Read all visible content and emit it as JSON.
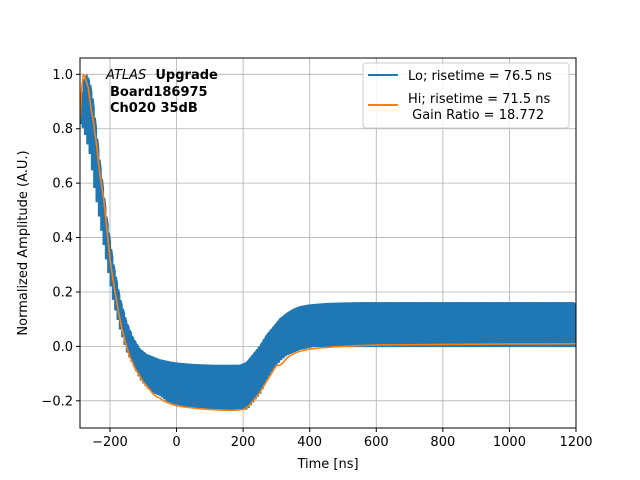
{
  "chart_data": {
    "type": "line",
    "title": "",
    "xlabel": "Time [ns]",
    "ylabel": "Normalized Amplitude (A.U.)",
    "xlim": [
      -290,
      1200
    ],
    "ylim": [
      -0.3,
      1.06
    ],
    "xticks": [
      -200,
      0,
      200,
      400,
      600,
      800,
      1000,
      1200
    ],
    "yticks": [
      -0.2,
      0.0,
      0.2,
      0.4,
      0.6,
      0.8,
      1.0
    ],
    "xtick_labels": [
      "−200",
      "0",
      "200",
      "400",
      "600",
      "800",
      "1000",
      "1200"
    ],
    "ytick_labels": [
      "−0.2",
      "0.0",
      "0.2",
      "0.4",
      "0.6",
      "0.8",
      "1.0"
    ],
    "grid": true,
    "legend_position": "top-right",
    "annotation": {
      "italic": "ATLAS",
      "bold": "Upgrade",
      "line2": "Board186975",
      "line3": "Ch020 35dB"
    },
    "series": [
      {
        "name": "Lo; risetime = 76.5 ns",
        "color": "#1f77b4",
        "style": "sampled-comb",
        "x": [
          -290,
          -280,
          -270,
          -260,
          -250,
          -230,
          -210,
          -190,
          -170,
          -150,
          -130,
          -110,
          -90,
          -70,
          -50,
          -30,
          -10,
          10,
          30,
          50,
          70,
          90,
          110,
          130,
          150,
          170,
          190,
          210,
          230,
          250,
          270,
          290,
          310,
          330,
          350,
          370,
          390,
          410,
          430,
          450,
          470,
          500,
          550,
          600,
          700,
          800,
          900,
          1000,
          1100,
          1200
        ],
        "y": [
          0.85,
          0.97,
          1.0,
          0.97,
          0.9,
          0.68,
          0.48,
          0.31,
          0.18,
          0.09,
          0.03,
          -0.01,
          -0.03,
          -0.04,
          -0.05,
          -0.055,
          -0.06,
          -0.063,
          -0.065,
          -0.067,
          -0.068,
          -0.069,
          -0.07,
          -0.07,
          -0.07,
          -0.07,
          -0.07,
          -0.06,
          -0.03,
          0.0,
          0.04,
          0.07,
          0.1,
          0.12,
          0.135,
          0.145,
          0.15,
          0.153,
          0.155,
          0.157,
          0.158,
          0.159,
          0.16,
          0.16,
          0.16,
          0.16,
          0.16,
          0.16,
          0.16,
          0.16
        ],
        "baseline": [
          0.82,
          0.8,
          0.75,
          0.7,
          0.6,
          0.45,
          0.3,
          0.16,
          0.06,
          -0.02,
          -0.07,
          -0.12,
          -0.15,
          -0.17,
          -0.18,
          -0.2,
          -0.21,
          -0.215,
          -0.22,
          -0.225,
          -0.225,
          -0.23,
          -0.23,
          -0.23,
          -0.23,
          -0.23,
          -0.23,
          -0.23,
          -0.2,
          -0.17,
          -0.12,
          -0.08,
          -0.05,
          -0.03,
          -0.02,
          -0.01,
          -0.005,
          0.0,
          0.0,
          0.0,
          0.0,
          0.0,
          0.0,
          0.0,
          0.0,
          0.0,
          0.0,
          0.0,
          0.0,
          0.0
        ]
      },
      {
        "name": "Hi; risetime = 71.5 ns\n Gain Ratio = 18.772",
        "color": "#ff7f0e",
        "style": "line",
        "x": [
          -290,
          -285,
          -280,
          -275,
          -270,
          -265,
          -260,
          -255,
          -250,
          -245,
          -240,
          -235,
          -230,
          -225,
          -220,
          -215,
          -210,
          -205,
          -200,
          -195,
          -190,
          -185,
          -180,
          -175,
          -170,
          -165,
          -160,
          -155,
          -150,
          -145,
          -140,
          -135,
          -130,
          -125,
          -120,
          -115,
          -110,
          -105,
          -100,
          -90,
          -80,
          -70,
          -60,
          -50,
          -40,
          -30,
          -20,
          -10,
          0,
          20,
          40,
          60,
          80,
          100,
          120,
          140,
          160,
          180,
          200,
          210,
          220,
          230,
          240,
          250,
          260,
          270,
          280,
          290,
          300,
          310,
          320,
          330,
          340,
          350,
          360,
          380,
          400,
          420,
          440,
          460,
          480,
          500,
          550,
          600,
          700,
          800,
          900,
          1000,
          1100,
          1200
        ],
        "y": [
          0.83,
          0.95,
          1.0,
          0.99,
          0.97,
          0.95,
          0.9,
          0.86,
          0.83,
          0.78,
          0.74,
          0.68,
          0.63,
          0.59,
          0.55,
          0.5,
          0.44,
          0.38,
          0.32,
          0.28,
          0.24,
          0.2,
          0.17,
          0.13,
          0.1,
          0.07,
          0.045,
          0.02,
          0.0,
          -0.02,
          -0.04,
          -0.05,
          -0.065,
          -0.08,
          -0.09,
          -0.1,
          -0.11,
          -0.12,
          -0.13,
          -0.145,
          -0.16,
          -0.175,
          -0.185,
          -0.19,
          -0.2,
          -0.205,
          -0.21,
          -0.215,
          -0.218,
          -0.222,
          -0.225,
          -0.228,
          -0.23,
          -0.232,
          -0.233,
          -0.234,
          -0.235,
          -0.234,
          -0.232,
          -0.225,
          -0.215,
          -0.2,
          -0.185,
          -0.17,
          -0.15,
          -0.13,
          -0.11,
          -0.09,
          -0.07,
          -0.07,
          -0.06,
          -0.045,
          -0.035,
          -0.028,
          -0.022,
          -0.015,
          -0.01,
          -0.007,
          -0.005,
          -0.003,
          -0.001,
          0.0,
          0.003,
          0.005,
          0.006,
          0.007,
          0.008,
          0.009,
          0.009,
          0.01
        ]
      }
    ]
  }
}
